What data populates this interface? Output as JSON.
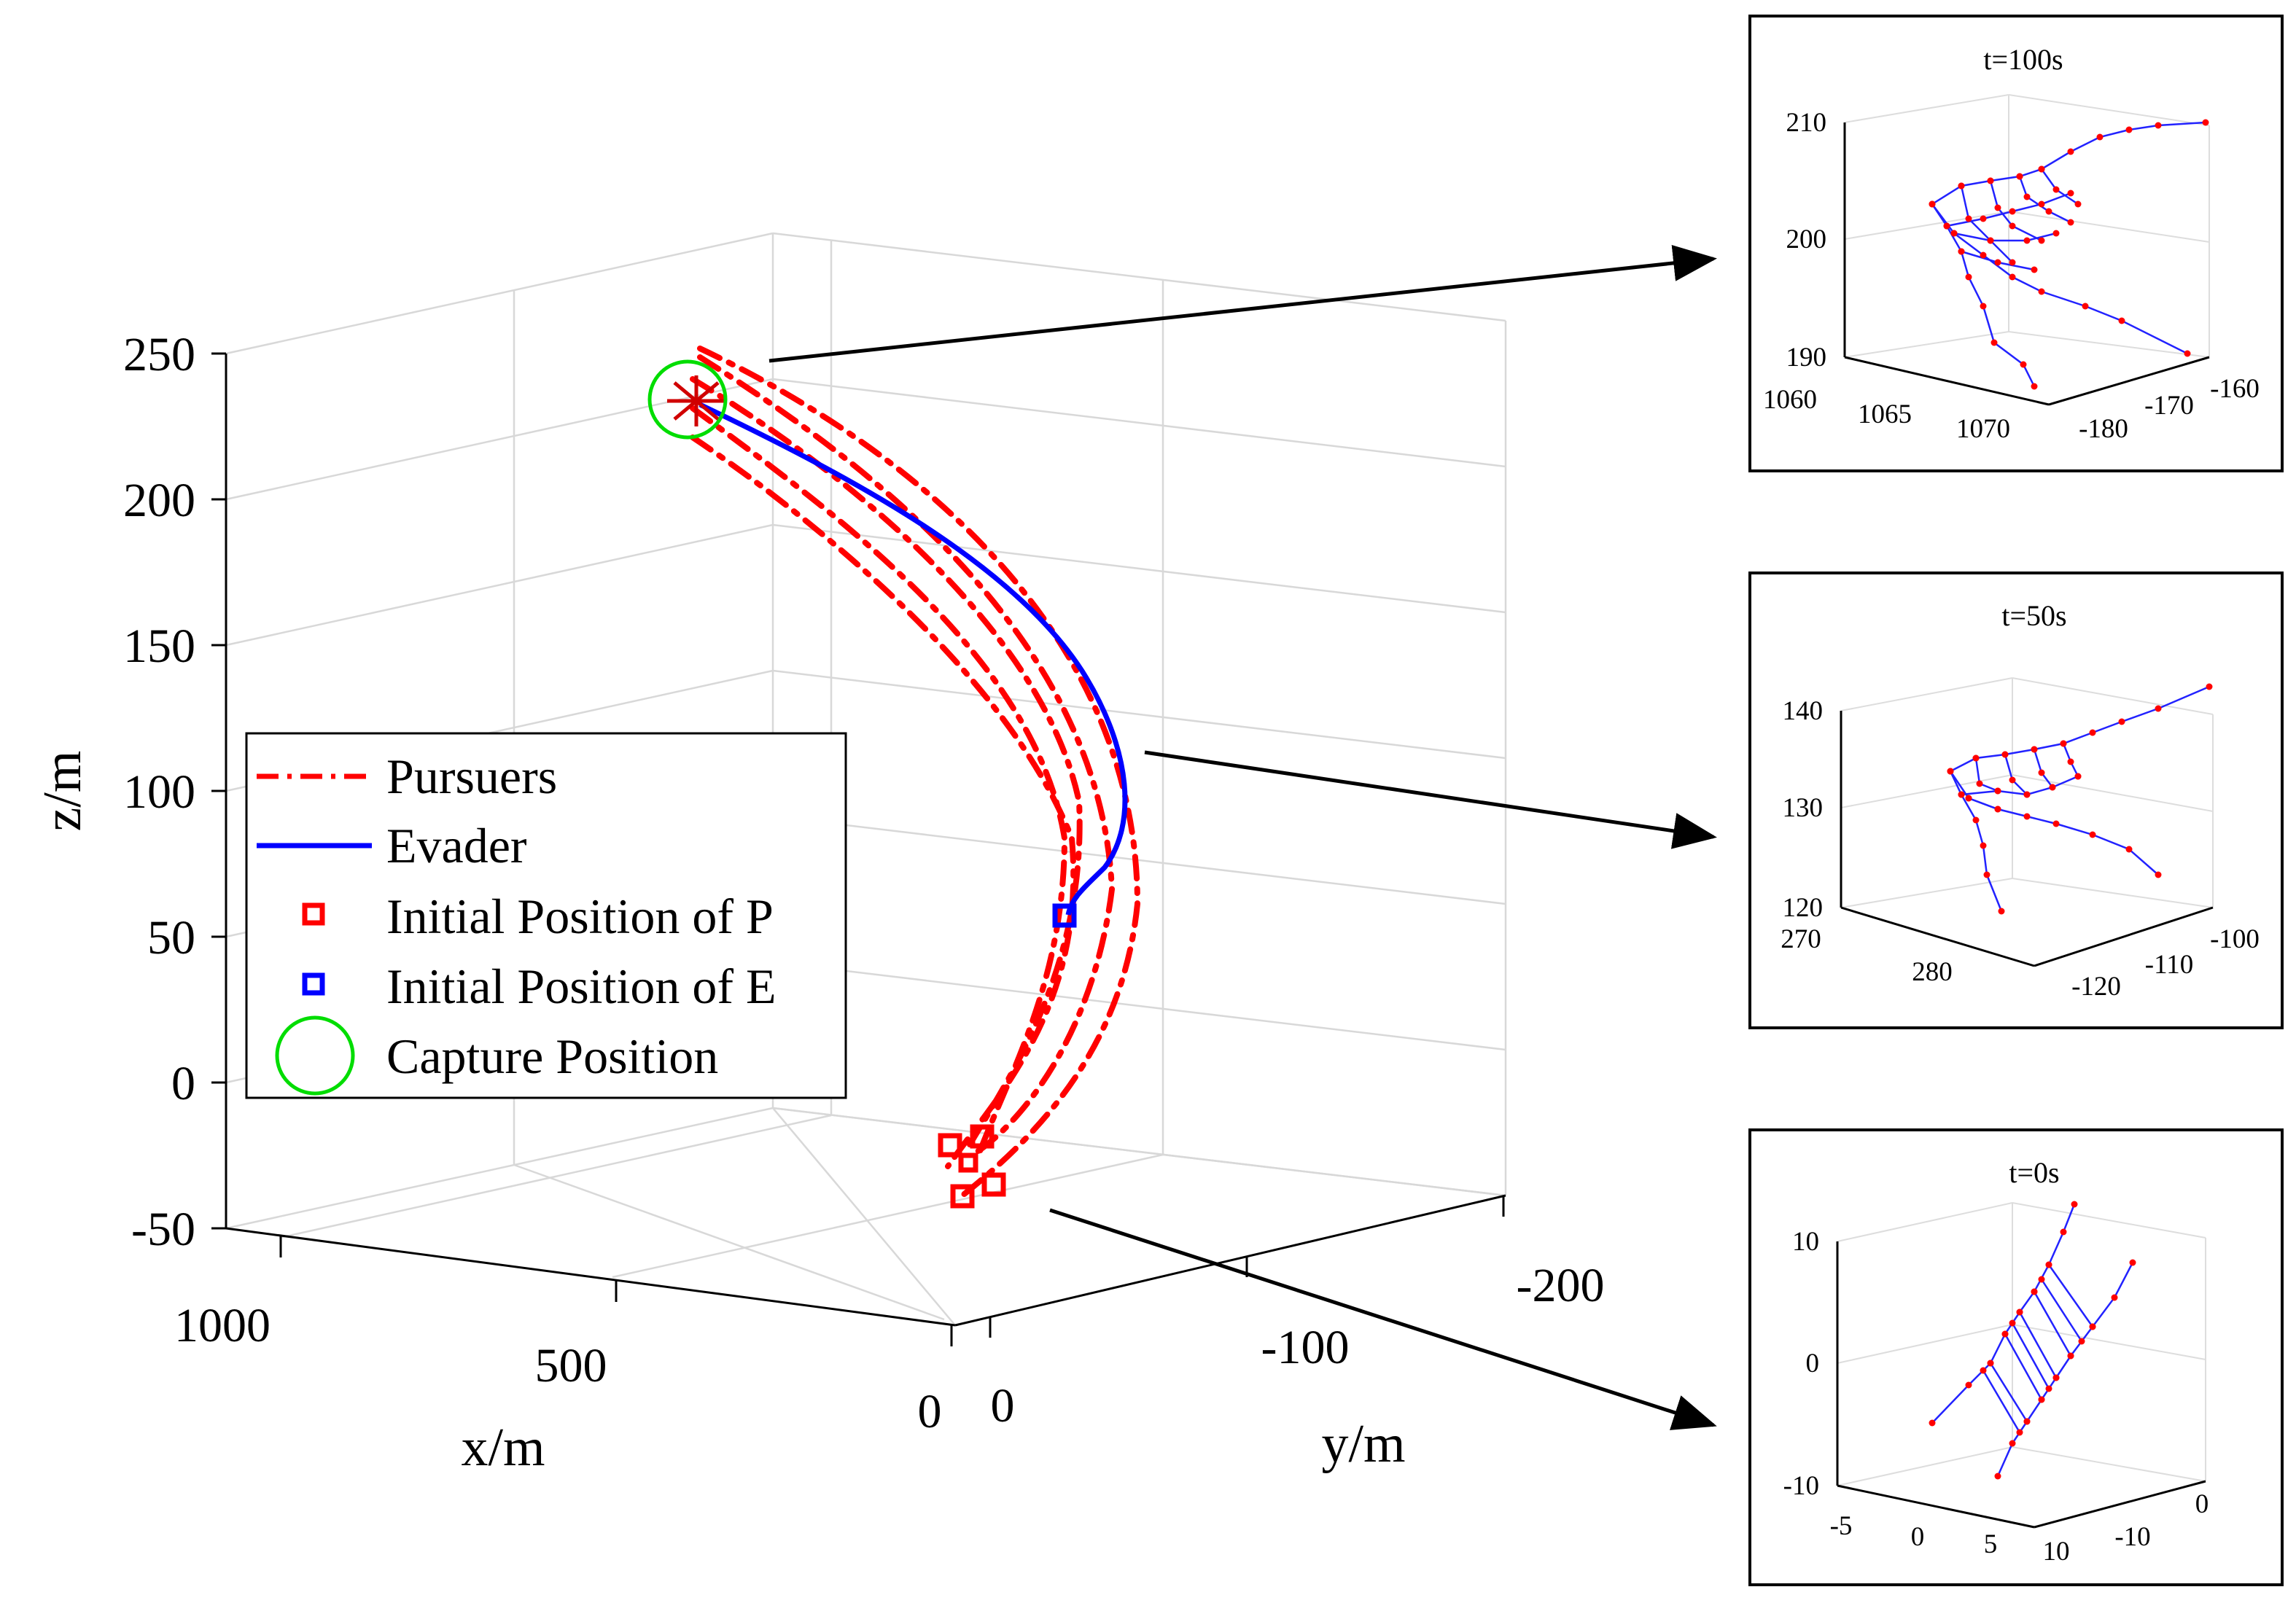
{
  "colors": {
    "pursuer": "#ff0000",
    "evader": "#0000ff",
    "capture": "#00dd00",
    "node": "#ff0000",
    "link": "#2222ff",
    "grid": "#d8d8d8",
    "axis": "#000000"
  },
  "chart_data": [
    {
      "type": "line3d",
      "id": "main",
      "title": "",
      "xlabel": "x/m",
      "ylabel": "y/m",
      "zlabel": "z/m",
      "xlim": [
        0,
        1000
      ],
      "ylim": [
        -200,
        0
      ],
      "zlim": [
        -50,
        250
      ],
      "x_ticks": [
        "1000",
        "500",
        "0"
      ],
      "y_ticks": [
        "-200",
        "-100",
        "0"
      ],
      "z_ticks": [
        "250",
        "200",
        "150",
        "100",
        "50",
        "0",
        "-50"
      ],
      "grid": true,
      "legend": {
        "placement": "middle-left",
        "entries": [
          "Pursuers",
          "Evader",
          "Initial Position of P",
          "Initial Position of E",
          "Capture Position"
        ]
      },
      "series": [
        {
          "name": "Evader",
          "style": "solid",
          "color": "#0000ff",
          "points": [
            [
              20,
              -10,
              55
            ],
            [
              120,
              -45,
              110
            ],
            [
              390,
              -95,
              175
            ],
            [
              740,
              -120,
              215
            ],
            [
              1070,
              -170,
              235
            ]
          ]
        },
        {
          "name": "Pursuers",
          "style": "dashdot",
          "color": "#ff0000",
          "points": [
            [
              10,
              0,
              -15
            ],
            [
              40,
              -30,
              45
            ],
            [
              190,
              -85,
              130
            ],
            [
              520,
              -125,
              205
            ],
            [
              1070,
              -175,
              238
            ]
          ]
        },
        {
          "name": "Pursuers",
          "style": "dashdot",
          "color": "#ff0000",
          "points": [
            [
              30,
              5,
              -20
            ],
            [
              70,
              -35,
              50
            ],
            [
              240,
              -95,
              135
            ],
            [
              580,
              -135,
              210
            ],
            [
              1070,
              -175,
              236
            ]
          ]
        },
        {
          "name": "Pursuers",
          "style": "dashdot",
          "color": "#ff0000",
          "points": [
            [
              -20,
              -5,
              -30
            ],
            [
              20,
              -40,
              45
            ],
            [
              160,
              -95,
              140
            ],
            [
              480,
              -130,
              212
            ],
            [
              1070,
              -175,
              234
            ]
          ]
        },
        {
          "name": "Pursuers",
          "style": "dashdot",
          "color": "#ff0000",
          "points": [
            [
              0,
              10,
              -35
            ],
            [
              50,
              -45,
              40
            ],
            [
              260,
              -110,
              150
            ],
            [
              640,
              -145,
              218
            ],
            [
              1070,
              -175,
              232
            ]
          ]
        },
        {
          "name": "Pursuers",
          "style": "dashdot",
          "color": "#ff0000",
          "points": [
            [
              -10,
              -10,
              -25
            ],
            [
              10,
              -50,
              55
            ],
            [
              130,
              -100,
              145
            ],
            [
              450,
              -140,
              215
            ],
            [
              1070,
              -175,
              237
            ]
          ]
        }
      ],
      "markers": [
        {
          "name": "Initial Position of P",
          "points": [
            [
              10,
              0,
              -15
            ],
            [
              30,
              5,
              -20
            ],
            [
              -20,
              -5,
              -30
            ],
            [
              0,
              10,
              -35
            ],
            [
              -10,
              -10,
              -25
            ]
          ]
        },
        {
          "name": "Initial Position of E",
          "points": [
            [
              20,
              -10,
              55
            ]
          ]
        },
        {
          "name": "Capture Position",
          "points": [
            [
              1070,
              -175,
              235
            ]
          ]
        }
      ]
    },
    {
      "type": "mesh3d",
      "id": "inset_t100",
      "title": "t=100s",
      "z_ticks": [
        "210",
        "200",
        "190"
      ],
      "x_ticks": [
        "1060",
        "1065",
        "1070"
      ],
      "y_ticks": [
        "-180",
        "-170",
        "-160"
      ]
    },
    {
      "type": "mesh3d",
      "id": "inset_t50",
      "title": "t=50s",
      "z_ticks": [
        "140",
        "130",
        "120"
      ],
      "x_ticks": [
        "270",
        "280"
      ],
      "y_ticks": [
        "-120",
        "-110",
        "-100"
      ]
    },
    {
      "type": "mesh3d",
      "id": "inset_t0",
      "title": "t=0s",
      "z_ticks": [
        "10",
        "0",
        "-10"
      ],
      "x_ticks": [
        "-5",
        "0",
        "5",
        "10"
      ],
      "y_ticks": [
        "-10",
        "0"
      ]
    }
  ]
}
